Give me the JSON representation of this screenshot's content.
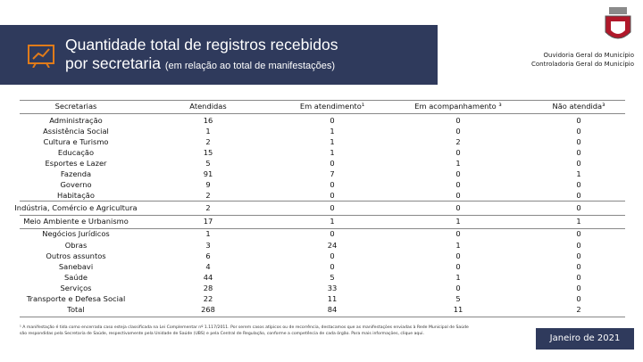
{
  "header": {
    "title_line1": "Quantidade total de registros recebidos",
    "title_line2": "por secretaria",
    "subtitle": "(em relação ao total de manifestações)",
    "org_line1": "Ouvidoria Geral do Município",
    "org_line2": "Controladoria Geral do Município"
  },
  "table": {
    "columns": [
      "Secretarias",
      "Atendidas",
      "Em atendimento¹",
      "Em acompanhamento ³",
      "Não atendida³"
    ],
    "rows": [
      [
        "Administração",
        16,
        0,
        0,
        0
      ],
      [
        "Assistência Social",
        1,
        1,
        0,
        0
      ],
      [
        "Cultura e Turismo",
        2,
        1,
        2,
        0
      ],
      [
        "Educação",
        15,
        1,
        0,
        0
      ],
      [
        "Esportes e Lazer",
        5,
        0,
        1,
        0
      ],
      [
        "Fazenda",
        91,
        7,
        0,
        1
      ],
      [
        "Governo",
        9,
        0,
        0,
        0
      ],
      [
        "Habitação",
        2,
        0,
        0,
        0
      ],
      [
        "Indústria, Comércio e Agricultura",
        2,
        0,
        0,
        0
      ],
      [
        "Meio Ambiente e Urbanismo",
        17,
        1,
        1,
        1
      ],
      [
        "Negócios Jurídicos",
        1,
        0,
        0,
        0
      ],
      [
        "Obras",
        3,
        24,
        1,
        0
      ],
      [
        "Outros assuntos",
        6,
        0,
        0,
        0
      ],
      [
        "Sanebavi",
        4,
        0,
        0,
        0
      ],
      [
        "Saúde",
        44,
        5,
        1,
        0
      ],
      [
        "Serviços",
        28,
        33,
        0,
        0
      ],
      [
        "Transporte e Defesa Social",
        22,
        11,
        5,
        0
      ],
      [
        "Total",
        268,
        84,
        11,
        2
      ]
    ]
  },
  "footnote": "¹ A manifestação é tida como encerrada caso esteja classificada na Lei Complementar nº 1.117/2011. Por serem casos atípicos ou de recorrência, destacamos que as manifestações enviadas à Rede Municipal de Saúde são respondidas pela Secretaria de Saúde, respectivamente pela Unidade de Saúde (UBS) e pela Central de Regulação, conforme a competência de cada órgão. Para mais informações, clique aqui.",
  "date": "Janeiro de 2021"
}
